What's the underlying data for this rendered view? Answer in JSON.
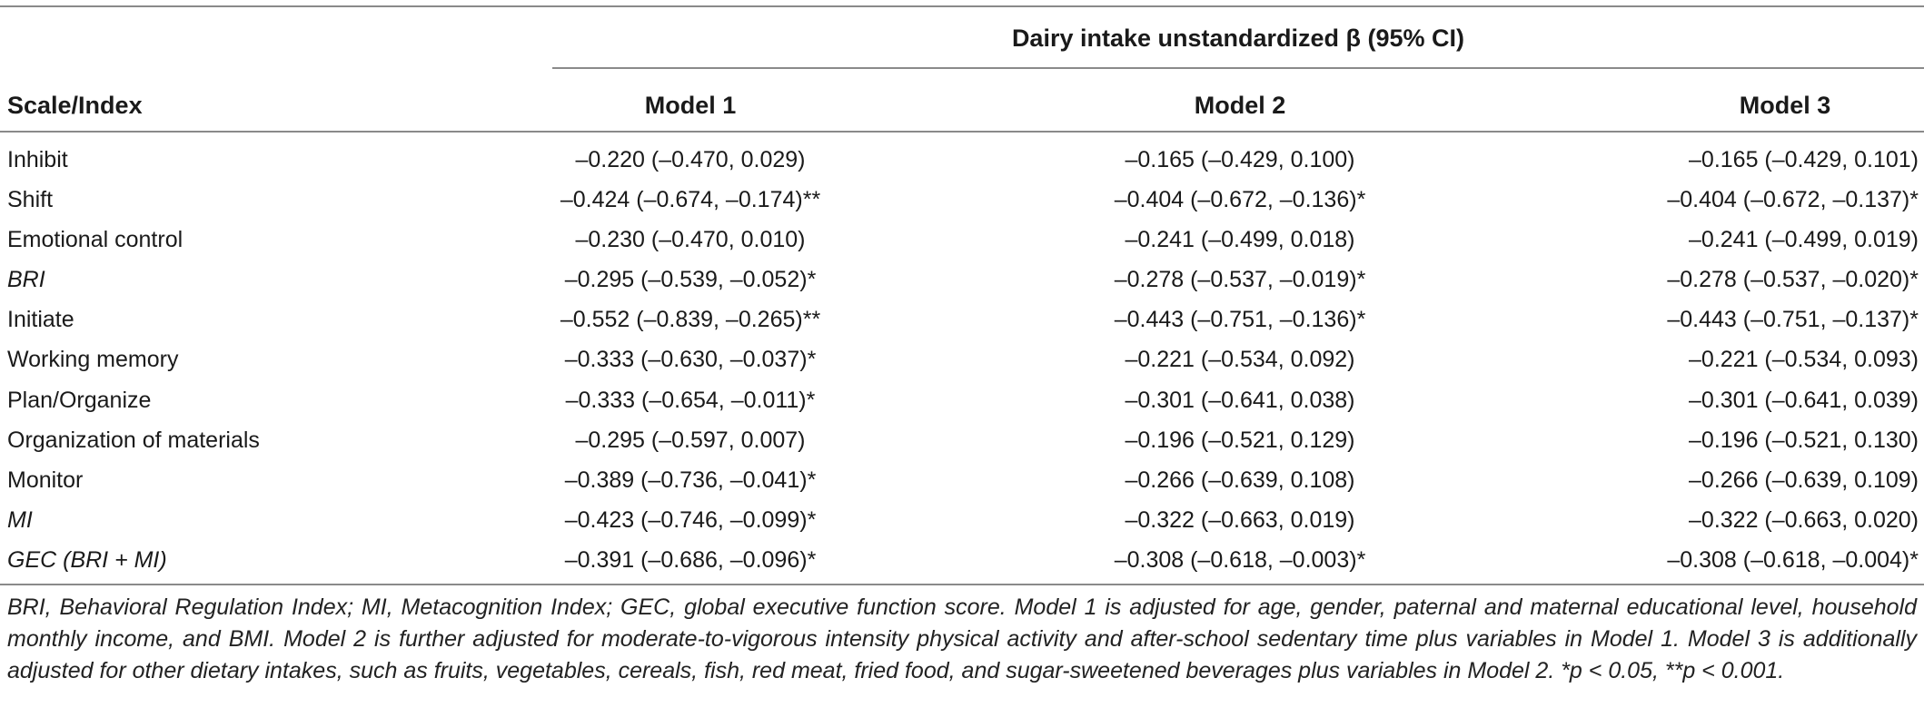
{
  "table": {
    "group_header": "Dairy intake unstandardized β (95% CI)",
    "columns": [
      "Scale/Index",
      "Model 1",
      "Model 2",
      "Model 3"
    ],
    "rows": [
      {
        "label": "Inhibit",
        "italic": false,
        "m1": "–0.220 (–0.470, 0.029)",
        "m2": "–0.165 (–0.429, 0.100)",
        "m3": "–0.165 (–0.429, 0.101)"
      },
      {
        "label": "Shift",
        "italic": false,
        "m1": "–0.424 (–0.674, –0.174)**",
        "m2": "–0.404 (–0.672, –0.136)*",
        "m3": "–0.404 (–0.672, –0.137)*"
      },
      {
        "label": "Emotional control",
        "italic": false,
        "m1": "–0.230 (–0.470, 0.010)",
        "m2": "–0.241 (–0.499, 0.018)",
        "m3": "–0.241 (–0.499, 0.019)"
      },
      {
        "label": "BRI",
        "italic": true,
        "m1": "–0.295 (–0.539, –0.052)*",
        "m2": "–0.278 (–0.537, –0.019)*",
        "m3": "–0.278 (–0.537, –0.020)*"
      },
      {
        "label": "Initiate",
        "italic": false,
        "m1": "–0.552 (–0.839, –0.265)**",
        "m2": "–0.443 (–0.751, –0.136)*",
        "m3": "–0.443 (–0.751, –0.137)*"
      },
      {
        "label": "Working memory",
        "italic": false,
        "m1": "–0.333 (–0.630, –0.037)*",
        "m2": "–0.221 (–0.534, 0.092)",
        "m3": "–0.221 (–0.534, 0.093)"
      },
      {
        "label": "Plan/Organize",
        "italic": false,
        "m1": "–0.333 (–0.654, –0.011)*",
        "m2": "–0.301 (–0.641, 0.038)",
        "m3": "–0.301 (–0.641, 0.039)"
      },
      {
        "label": "Organization of materials",
        "italic": false,
        "m1": "–0.295 (–0.597, 0.007)",
        "m2": "–0.196 (–0.521, 0.129)",
        "m3": "–0.196 (–0.521, 0.130)"
      },
      {
        "label": "Monitor",
        "italic": false,
        "m1": "–0.389 (–0.736, –0.041)*",
        "m2": "–0.266 (–0.639, 0.108)",
        "m3": "–0.266 (–0.639, 0.109)"
      },
      {
        "label": "MI",
        "italic": true,
        "m1": "–0.423 (–0.746, –0.099)*",
        "m2": "–0.322 (–0.663, 0.019)",
        "m3": "–0.322 (–0.663, 0.020)"
      },
      {
        "label": "GEC (BRI + MI)",
        "italic": true,
        "m1": "–0.391 (–0.686, –0.096)*",
        "m2": "–0.308 (–0.618, –0.003)*",
        "m3": "–0.308 (–0.618, –0.004)*"
      }
    ],
    "footnote": "BRI, Behavioral Regulation Index; MI, Metacognition Index; GEC, global executive function score. Model 1 is adjusted for age, gender, paternal and maternal educational level, household monthly income, and BMI. Model 2 is further adjusted for moderate-to-vigorous intensity physical activity and after-school sedentary time plus variables in Model 1. Model 3 is additionally adjusted for other dietary intakes, such as fruits, vegetables, cereals, fish, red meat, fried food, and sugar-sweetened beverages plus variables in Model 2. *p < 0.05, **p < 0.001."
  }
}
